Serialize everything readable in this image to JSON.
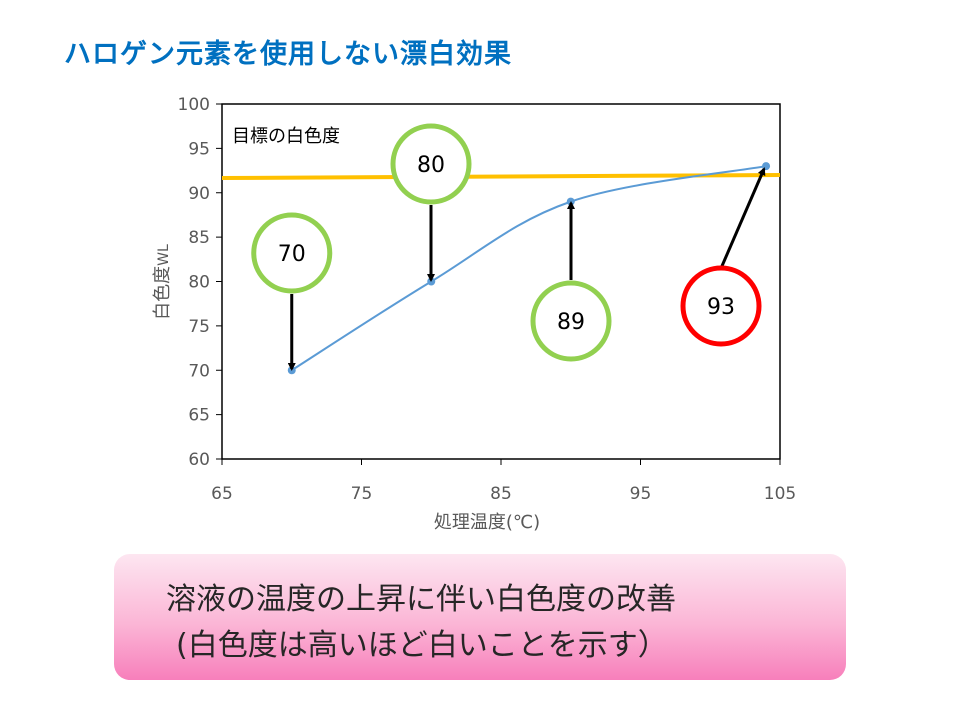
{
  "title": "ハロゲン元素を使用しない漂白効果",
  "chart_data": {
    "type": "line",
    "xlabel": "処理温度(℃)",
    "ylabel": "白色度",
    "ylabel_sub": "WL",
    "xlim": [
      65,
      105
    ],
    "ylim": [
      60,
      100
    ],
    "x_ticks": [
      "65",
      "75",
      "85",
      "95",
      "105"
    ],
    "y_ticks": [
      "60",
      "65",
      "70",
      "75",
      "80",
      "85",
      "90",
      "95",
      "100"
    ],
    "series": [
      {
        "x": [
          70,
          80,
          90,
          104
        ],
        "values": [
          70,
          80,
          89,
          93
        ],
        "color": "#5B9BD5"
      }
    ],
    "target": {
      "label": "目標の白色度",
      "value": 92,
      "color": "#FFC000"
    },
    "callouts": [
      {
        "text": "70",
        "x": 70,
        "y": 70,
        "color": "#92D050"
      },
      {
        "text": "80",
        "x": 80,
        "y": 80,
        "color": "#92D050"
      },
      {
        "text": "89",
        "x": 90,
        "y": 89,
        "color": "#92D050"
      },
      {
        "text": "93",
        "x": 104,
        "y": 93,
        "color": "#FF0000"
      }
    ]
  },
  "summary": {
    "line1": "溶液の温度の上昇に伴い白色度の改善",
    "line2": "(白色度は高いほど白いことを示す）"
  }
}
